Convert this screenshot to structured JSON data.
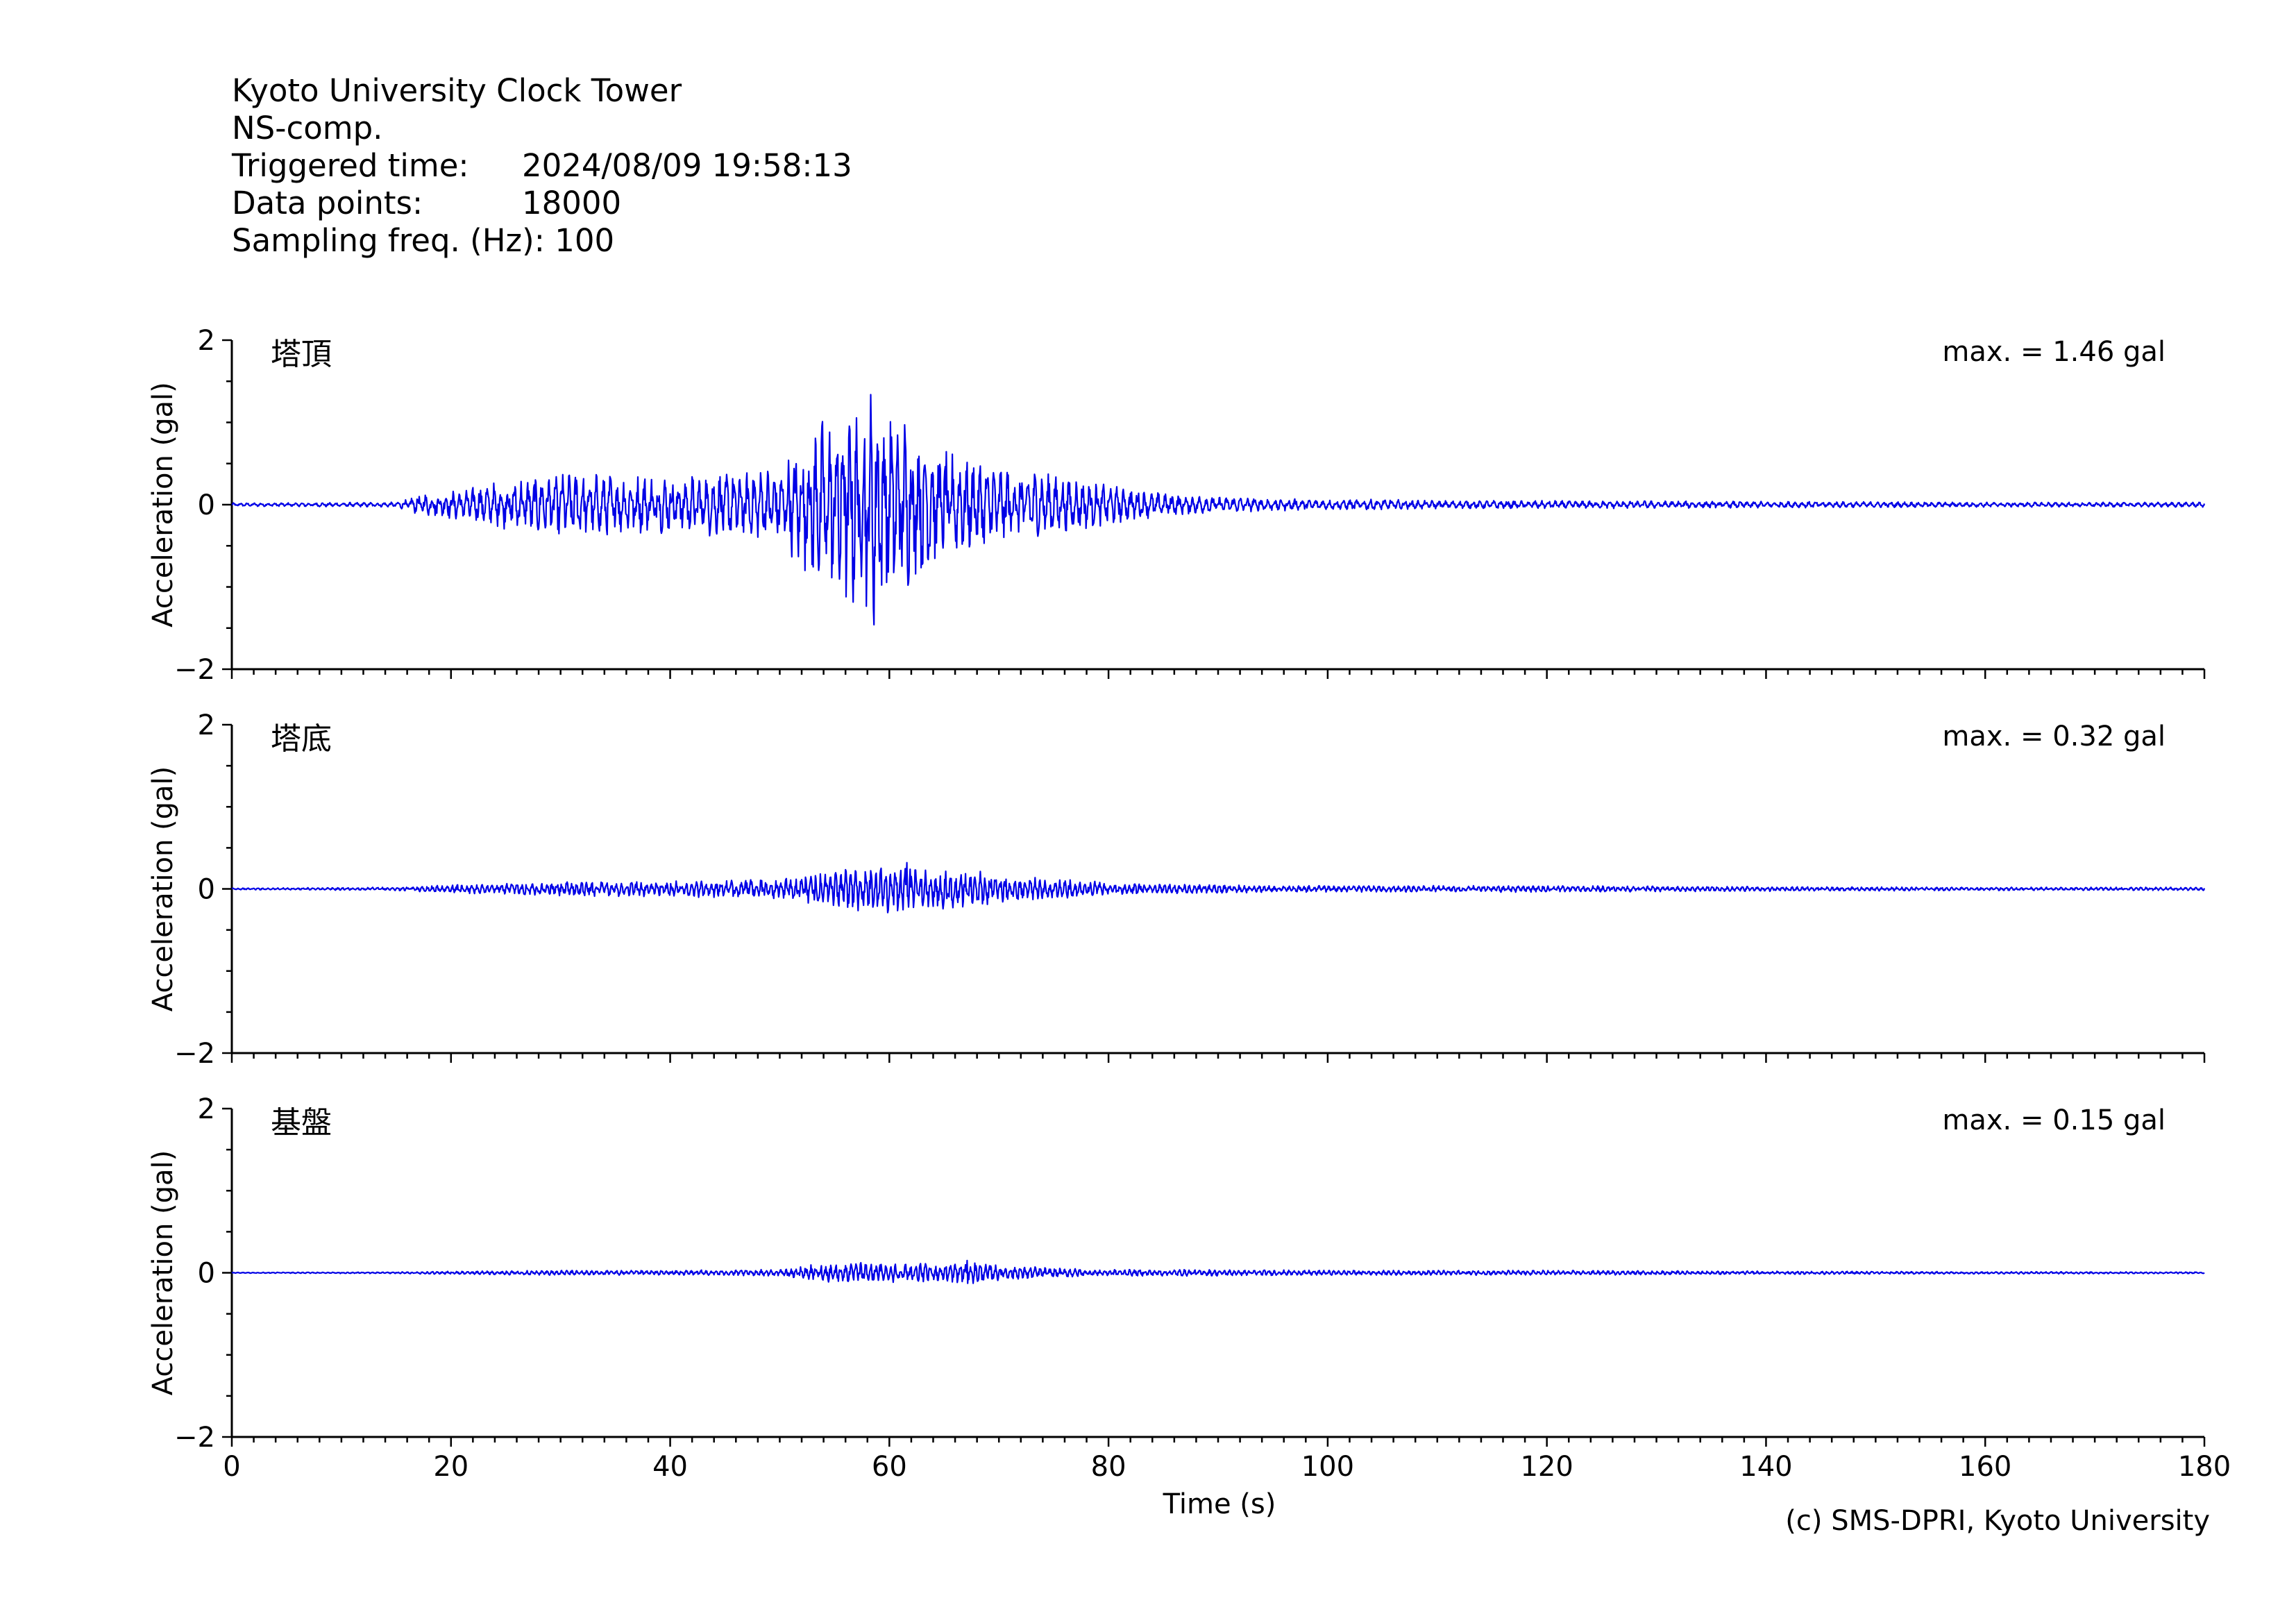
{
  "header": {
    "station": "Kyoto University Clock Tower",
    "component": "NS-comp.",
    "triggered_label": "Triggered time:",
    "triggered_value": "2024/08/09 19:58:13",
    "points_label": "Data points:",
    "points_value": "18000",
    "freq_label": "Sampling freq. (Hz):",
    "freq_value": "100"
  },
  "copyright": "(c) SMS-DPRI, Kyoto University",
  "colors": {
    "trace": "#0000e6",
    "axis": "#000000"
  },
  "chart_data": {
    "type": "line",
    "x_range": [
      0,
      180
    ],
    "y_range": [
      -2,
      2
    ],
    "y_ticks": [
      "2",
      "0",
      "−2"
    ],
    "x_ticks": [
      "0",
      "20",
      "40",
      "60",
      "80",
      "100",
      "120",
      "140",
      "160",
      "180"
    ],
    "xlabel": "Time (s)",
    "ylabel": "Acceleration (gal)",
    "grid": false,
    "panels": [
      {
        "name": "塔頂",
        "max_label": "max. = 1.46 gal",
        "max_value": 1.46,
        "envelope": {
          "t": [
            0,
            15,
            17,
            22,
            25,
            30,
            35,
            40,
            45,
            50,
            53,
            55,
            57,
            58,
            60,
            62,
            65,
            68,
            72,
            76,
            80,
            85,
            90,
            95,
            100,
            105,
            110,
            120,
            140,
            160,
            180
          ],
          "a": [
            0.02,
            0.03,
            0.12,
            0.22,
            0.3,
            0.4,
            0.38,
            0.35,
            0.4,
            0.45,
            1.0,
            1.25,
            1.3,
            1.46,
            1.2,
            1.0,
            0.7,
            0.55,
            0.45,
            0.35,
            0.25,
            0.14,
            0.1,
            0.08,
            0.06,
            0.07,
            0.05,
            0.05,
            0.04,
            0.03,
            0.03
          ]
        }
      },
      {
        "name": "塔底",
        "max_label": "max. = 0.32 gal",
        "max_value": 0.32,
        "envelope": {
          "t": [
            0,
            15,
            20,
            25,
            30,
            35,
            40,
            45,
            50,
            53,
            55,
            58,
            60,
            62,
            65,
            68,
            72,
            76,
            80,
            85,
            90,
            100,
            120,
            140,
            160,
            180
          ],
          "a": [
            0.01,
            0.02,
            0.05,
            0.07,
            0.09,
            0.1,
            0.1,
            0.11,
            0.13,
            0.2,
            0.25,
            0.28,
            0.32,
            0.26,
            0.25,
            0.22,
            0.15,
            0.12,
            0.08,
            0.06,
            0.05,
            0.04,
            0.04,
            0.03,
            0.02,
            0.02
          ]
        }
      },
      {
        "name": "基盤",
        "max_label": "max. = 0.15 gal",
        "max_value": 0.15,
        "envelope": {
          "t": [
            0,
            15,
            20,
            30,
            40,
            50,
            53,
            55,
            58,
            60,
            62,
            65,
            67,
            70,
            75,
            80,
            85,
            90,
            100,
            120,
            140,
            160,
            180
          ],
          "a": [
            0.005,
            0.01,
            0.02,
            0.03,
            0.03,
            0.04,
            0.1,
            0.12,
            0.13,
            0.12,
            0.11,
            0.12,
            0.15,
            0.1,
            0.06,
            0.04,
            0.04,
            0.04,
            0.03,
            0.03,
            0.02,
            0.015,
            0.01
          ]
        }
      }
    ]
  }
}
